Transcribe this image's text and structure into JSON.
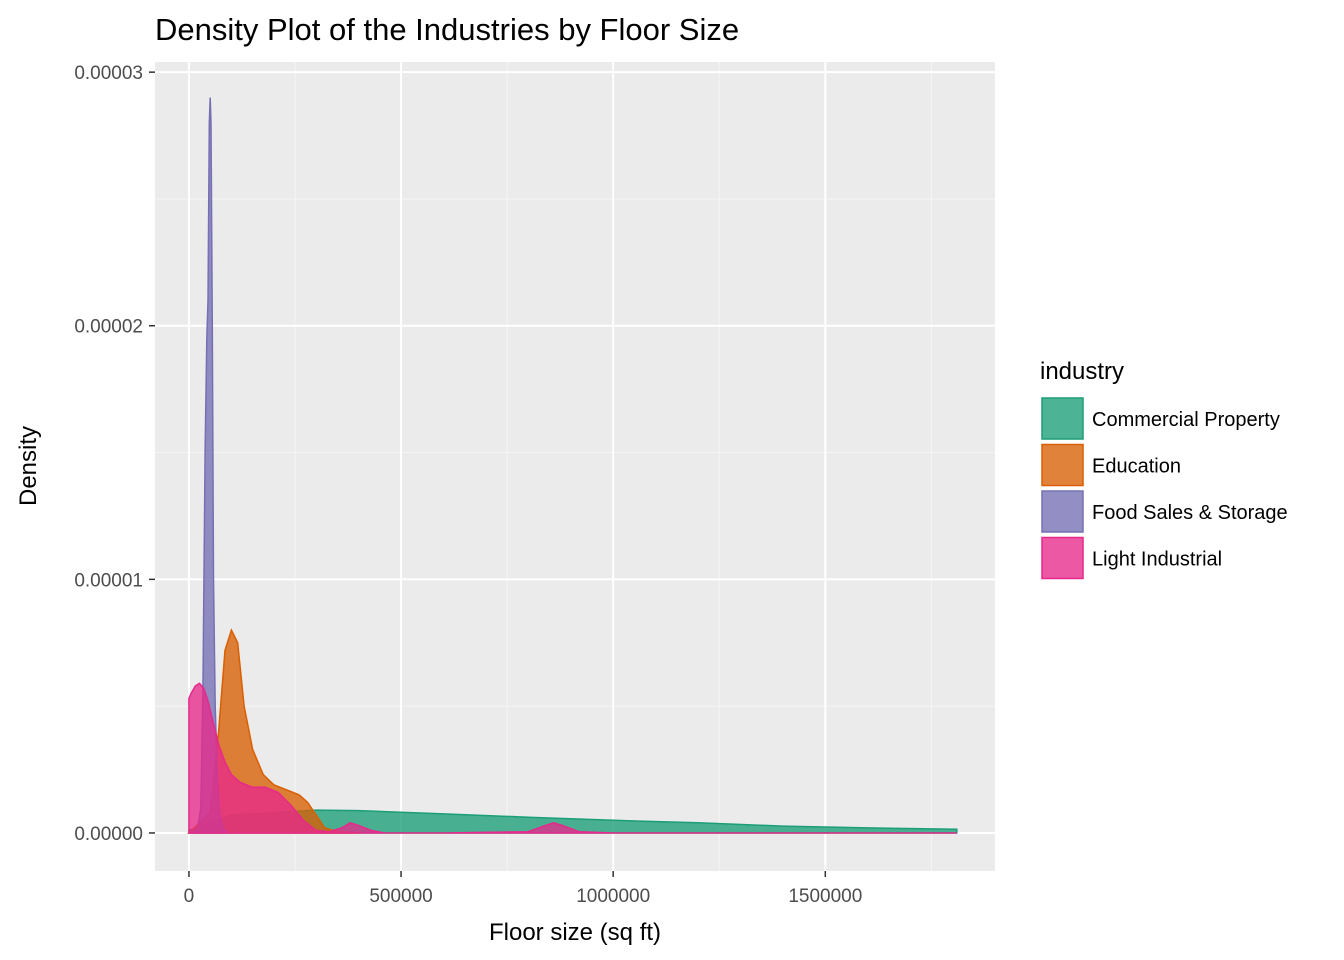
{
  "chart_data": {
    "type": "area",
    "title": "Density Plot of the Industries by Floor Size",
    "xlabel": "Floor size (sq ft)",
    "ylabel": "Density",
    "xlim": [
      -80000,
      1900000
    ],
    "ylim": [
      -1.5e-06,
      3.04e-05
    ],
    "x_ticks": [
      0,
      500000,
      1000000,
      1500000
    ],
    "x_tick_labels": [
      "0",
      "500000",
      "1000000",
      "1500000"
    ],
    "y_ticks": [
      0,
      1e-05,
      2e-05,
      3e-05
    ],
    "y_tick_labels": [
      "0.00000",
      "0.00001",
      "0.00002",
      "0.00003"
    ],
    "grid": true,
    "legend": {
      "title": "industry",
      "position": "right"
    },
    "series": [
      {
        "name": "Commercial Property",
        "fill": "#1b9e77",
        "stroke": "#1b9e77",
        "x": [
          0,
          50000,
          100000,
          200000,
          300000,
          400000,
          600000,
          800000,
          1000000,
          1200000,
          1400000,
          1600000,
          1810000
        ],
        "y": [
          1e-07,
          4e-07,
          7e-07,
          8e-07,
          9e-07,
          8.8e-07,
          7.5e-07,
          6.2e-07,
          5e-07,
          4e-07,
          2.7e-07,
          2e-07,
          1.5e-07
        ]
      },
      {
        "name": "Education",
        "fill": "#d95f02",
        "stroke": "#d95f02",
        "x": [
          0,
          50000,
          70000,
          85000,
          100000,
          115000,
          130000,
          150000,
          175000,
          200000,
          230000,
          260000,
          280000,
          300000,
          320000,
          350000,
          400000
        ],
        "y": [
          0,
          8e-07,
          4e-06,
          7.2e-06,
          8e-06,
          7.5e-06,
          5e-06,
          3.3e-06,
          2.3e-06,
          1.9e-06,
          1.7e-06,
          1.5e-06,
          1.2e-06,
          7e-07,
          2e-07,
          5e-08,
          0
        ]
      },
      {
        "name": "Food Sales & Storage",
        "fill": "#7570b3",
        "stroke": "#7570b3",
        "x": [
          0,
          20000,
          28000,
          33000,
          38000,
          42000,
          45000,
          48000,
          50000,
          52000,
          55000,
          58000,
          62000,
          67000,
          72000,
          80000,
          90000
        ],
        "y": [
          0,
          1e-07,
          1e-06,
          5.5e-06,
          1.5e-05,
          1.95e-05,
          2.1e-05,
          2.8e-05,
          2.9e-05,
          2.8e-05,
          2e-05,
          1e-05,
          5e-06,
          2.2e-06,
          8e-07,
          2e-07,
          0
        ]
      },
      {
        "name": "Light Industrial",
        "fill": "#e7298a",
        "stroke": "#e7298a",
        "x": [
          0,
          5000,
          15000,
          25000,
          35000,
          45000,
          55000,
          70000,
          85000,
          100000,
          120000,
          150000,
          180000,
          210000,
          240000,
          270000,
          300000,
          330000,
          360000,
          380000,
          400000,
          430000,
          460000,
          600000,
          800000,
          840000,
          860000,
          880000,
          920000,
          1000000,
          1810000
        ],
        "y": [
          5.3e-06,
          5.5e-06,
          5.8e-06,
          5.9e-06,
          5.7e-06,
          5.2e-06,
          4.5e-06,
          3.5e-06,
          2.8e-06,
          2.3e-06,
          2e-06,
          1.8e-06,
          1.8e-06,
          1.6e-06,
          1.1e-06,
          5e-07,
          1e-07,
          5e-08,
          2e-07,
          4e-07,
          3e-07,
          1e-07,
          0,
          0,
          5e-08,
          3e-07,
          4e-07,
          3e-07,
          5e-08,
          0,
          0
        ]
      }
    ]
  }
}
